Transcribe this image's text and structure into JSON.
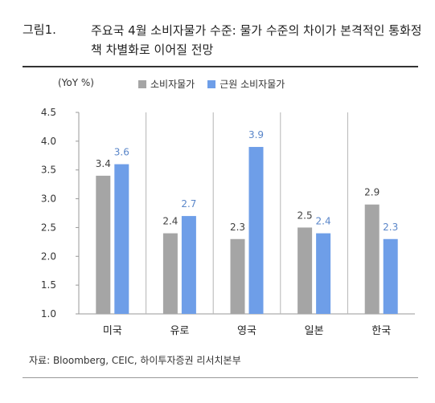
{
  "figure": {
    "number": "그림1.",
    "title": "주요국 4월 소비자물가 수준: 물가 수준의 차이가 본격적인 통화정책 차별화로 이어질 전망",
    "source": "자료: Bloomberg, CEIC, 하이투자증권 리서치본부"
  },
  "chart_data": {
    "type": "bar",
    "title": "",
    "unit_label": "(YoY %)",
    "xlabel": "",
    "ylabel": "",
    "categories": [
      "미국",
      "유로",
      "영국",
      "일본",
      "한국"
    ],
    "series": [
      {
        "name": "소비자물가",
        "values": [
          3.4,
          2.4,
          2.3,
          2.5,
          2.9
        ],
        "color": "#a5a5a5",
        "label_color": "#404040"
      },
      {
        "name": "근원 소비자물가",
        "values": [
          3.6,
          2.7,
          3.9,
          2.4,
          2.3
        ],
        "color": "#6e9ee8",
        "label_color": "#5a86c9"
      }
    ],
    "ylim": [
      1.0,
      4.5
    ],
    "yticks": [
      "1.0",
      "1.5",
      "2.0",
      "2.5",
      "3.0",
      "3.5",
      "4.0",
      "4.5"
    ],
    "grid": false,
    "legend_position": "top"
  }
}
